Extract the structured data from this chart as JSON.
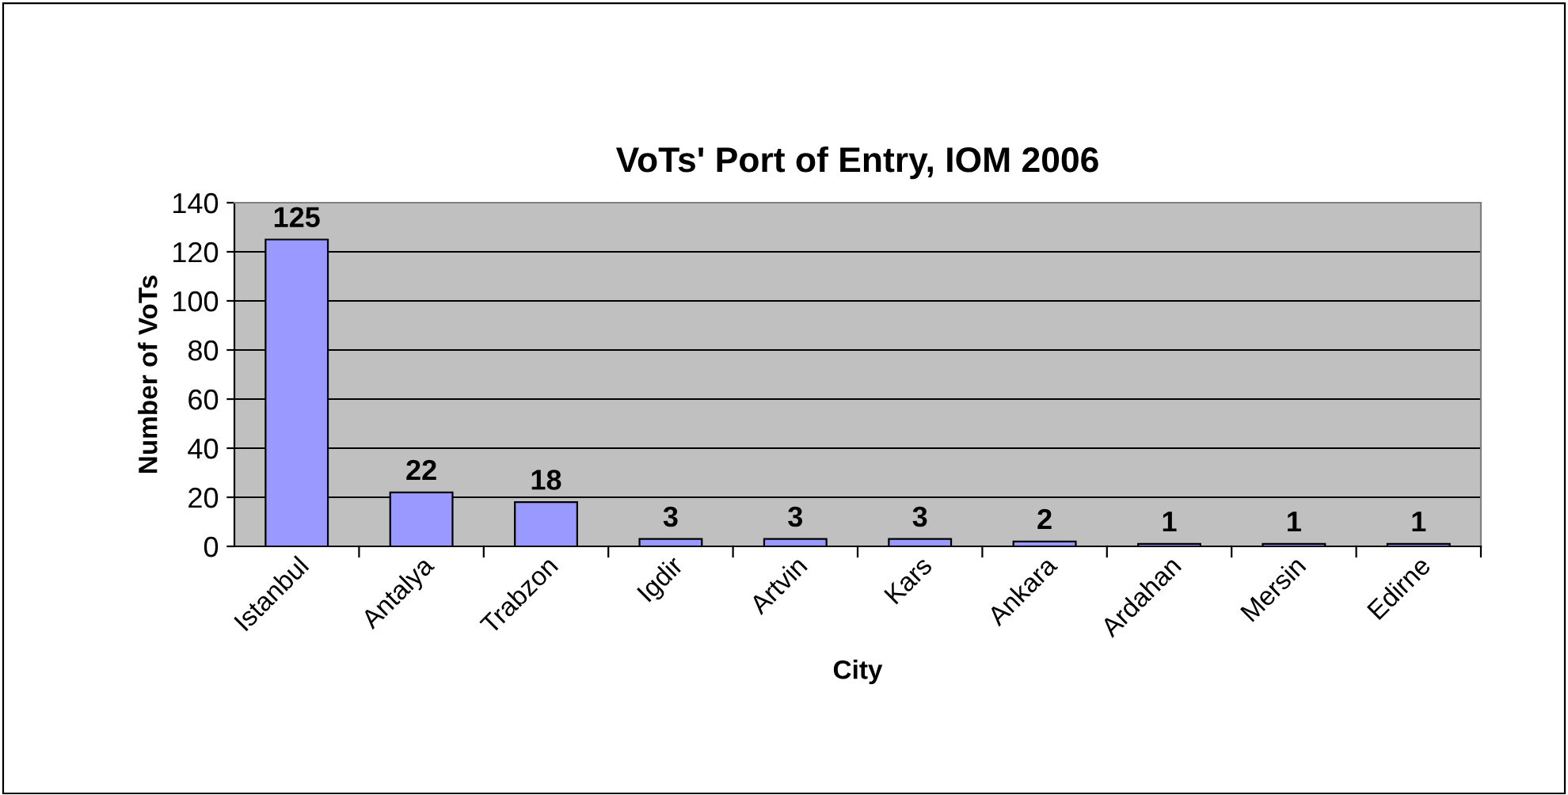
{
  "chart_data": {
    "type": "bar",
    "title": "VoTs' Port of Entry, IOM 2006",
    "xlabel": "City",
    "ylabel": "Number of VoTs",
    "categories": [
      "Istanbul",
      "Antalya",
      "Trabzon",
      "Igdir",
      "Artvin",
      "Kars",
      "Ankara",
      "Ardahan",
      "Mersin",
      "Edirne"
    ],
    "values": [
      125,
      22,
      18,
      3,
      3,
      3,
      2,
      1,
      1,
      1
    ],
    "color": "#9999ff",
    "ylim": [
      0,
      140
    ],
    "yticks": [
      0,
      20,
      40,
      60,
      80,
      100,
      120,
      140
    ],
    "grid": "y",
    "data_labels": true
  }
}
